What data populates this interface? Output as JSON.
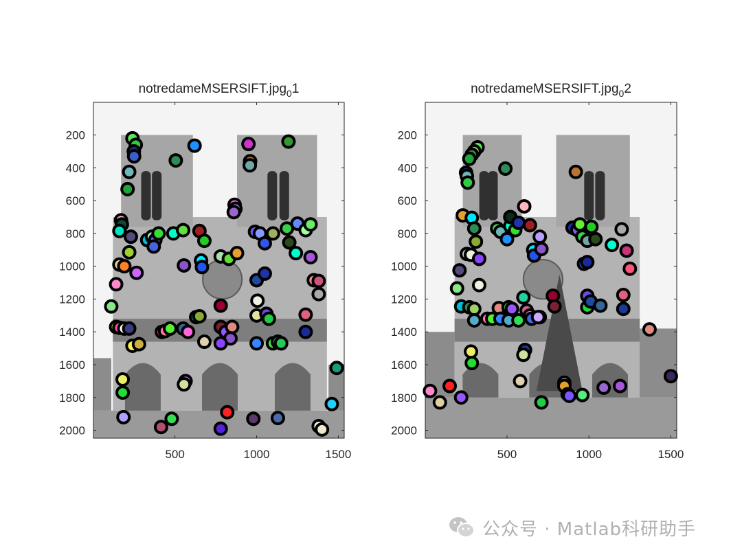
{
  "chart_data": [
    {
      "type": "scatter",
      "title_main": "notredameMSERSIFT.jpg",
      "title_sub": "0",
      "title_suffix": "1",
      "xlim": [
        1,
        1536
      ],
      "ylim": [
        1,
        2048
      ],
      "y_reversed": true,
      "x_ticks": [
        500,
        1000,
        1500
      ],
      "y_ticks": [
        200,
        400,
        600,
        800,
        1000,
        1200,
        1400,
        1600,
        1800,
        2000
      ],
      "background": "grayscale photo of Notre-Dame cathedral facade",
      "points": [
        {
          "x": 240,
          "y": 220,
          "color": "#5ee35e"
        },
        {
          "x": 260,
          "y": 260,
          "color": "#2ecc40"
        },
        {
          "x": 620,
          "y": 265,
          "color": "#1e90ff"
        },
        {
          "x": 950,
          "y": 255,
          "color": "#cc33cc"
        },
        {
          "x": 1195,
          "y": 240,
          "color": "#339933"
        },
        {
          "x": 248,
          "y": 300,
          "color": "#1f2f7f"
        },
        {
          "x": 250,
          "y": 330,
          "color": "#3a5fcd"
        },
        {
          "x": 505,
          "y": 355,
          "color": "#2e8b57"
        },
        {
          "x": 960,
          "y": 360,
          "color": "#b87333"
        },
        {
          "x": 958,
          "y": 385,
          "color": "#6fa8a8"
        },
        {
          "x": 220,
          "y": 425,
          "color": "#6fb6b6"
        },
        {
          "x": 210,
          "y": 530,
          "color": "#1fa33a"
        },
        {
          "x": 865,
          "y": 625,
          "color": "#ff66ff"
        },
        {
          "x": 870,
          "y": 650,
          "color": "#b5a0ff"
        },
        {
          "x": 860,
          "y": 670,
          "color": "#9966cc"
        },
        {
          "x": 170,
          "y": 720,
          "color": "#ffb6c1"
        },
        {
          "x": 175,
          "y": 745,
          "color": "#0a4b3a"
        },
        {
          "x": 160,
          "y": 785,
          "color": "#00e5c0"
        },
        {
          "x": 230,
          "y": 820,
          "color": "#554a7a"
        },
        {
          "x": 330,
          "y": 840,
          "color": "#00bcd4"
        },
        {
          "x": 360,
          "y": 820,
          "color": "#a8e6cf"
        },
        {
          "x": 380,
          "y": 840,
          "color": "#6666ff"
        },
        {
          "x": 400,
          "y": 800,
          "color": "#33dd33"
        },
        {
          "x": 490,
          "y": 800,
          "color": "#00ffc8"
        },
        {
          "x": 550,
          "y": 780,
          "color": "#66dd44"
        },
        {
          "x": 650,
          "y": 785,
          "color": "#a02020"
        },
        {
          "x": 680,
          "y": 845,
          "color": "#22cc22"
        },
        {
          "x": 370,
          "y": 880,
          "color": "#4466dd"
        },
        {
          "x": 220,
          "y": 915,
          "color": "#a0d030"
        },
        {
          "x": 555,
          "y": 995,
          "color": "#8a55cc"
        },
        {
          "x": 660,
          "y": 965,
          "color": "#00e5ff"
        },
        {
          "x": 665,
          "y": 1005,
          "color": "#2255ee"
        },
        {
          "x": 780,
          "y": 940,
          "color": "#a8e0a8"
        },
        {
          "x": 830,
          "y": 955,
          "color": "#66dd33"
        },
        {
          "x": 880,
          "y": 920,
          "color": "#e6a030"
        },
        {
          "x": 990,
          "y": 790,
          "color": "#7a5ae6"
        },
        {
          "x": 1020,
          "y": 800,
          "color": "#8899ff"
        },
        {
          "x": 1050,
          "y": 860,
          "color": "#3355ee"
        },
        {
          "x": 1100,
          "y": 800,
          "color": "#a0b060"
        },
        {
          "x": 1185,
          "y": 770,
          "color": "#3ad04a"
        },
        {
          "x": 1200,
          "y": 855,
          "color": "#2b4a1a"
        },
        {
          "x": 1250,
          "y": 740,
          "color": "#6688ff"
        },
        {
          "x": 1300,
          "y": 780,
          "color": "#a0ffa0"
        },
        {
          "x": 1330,
          "y": 745,
          "color": "#66ee66"
        },
        {
          "x": 1240,
          "y": 920,
          "color": "#00ffd0"
        },
        {
          "x": 1330,
          "y": 945,
          "color": "#a855dd"
        },
        {
          "x": 160,
          "y": 990,
          "color": "#dcd0a0"
        },
        {
          "x": 190,
          "y": 1000,
          "color": "#ff7f27"
        },
        {
          "x": 265,
          "y": 1040,
          "color": "#cc66ff"
        },
        {
          "x": 1000,
          "y": 1085,
          "color": "#1f4aa0"
        },
        {
          "x": 1050,
          "y": 1045,
          "color": "#2233aa"
        },
        {
          "x": 1350,
          "y": 1085,
          "color": "#ff9090"
        },
        {
          "x": 1380,
          "y": 1090,
          "color": "#cc5577"
        },
        {
          "x": 1380,
          "y": 1170,
          "color": "#aaaaaa"
        },
        {
          "x": 140,
          "y": 1110,
          "color": "#ff88cc"
        },
        {
          "x": 110,
          "y": 1245,
          "color": "#8ae68a"
        },
        {
          "x": 780,
          "y": 1240,
          "color": "#9a0030"
        },
        {
          "x": 1005,
          "y": 1210,
          "color": "#f0f0e0"
        },
        {
          "x": 1000,
          "y": 1300,
          "color": "#e0e0a0"
        },
        {
          "x": 1060,
          "y": 1290,
          "color": "#6a4ae0"
        },
        {
          "x": 1075,
          "y": 1320,
          "color": "#22cc44"
        },
        {
          "x": 1300,
          "y": 1295,
          "color": "#e06080"
        },
        {
          "x": 630,
          "y": 1310,
          "color": "#1fa89a"
        },
        {
          "x": 650,
          "y": 1305,
          "color": "#88aa33"
        },
        {
          "x": 140,
          "y": 1370,
          "color": "#aaee22"
        },
        {
          "x": 160,
          "y": 1375,
          "color": "#ff4fa0"
        },
        {
          "x": 190,
          "y": 1380,
          "color": "#ffffff"
        },
        {
          "x": 220,
          "y": 1380,
          "color": "#3b3b80"
        },
        {
          "x": 420,
          "y": 1400,
          "color": "#ff3344"
        },
        {
          "x": 440,
          "y": 1395,
          "color": "#ff77aa"
        },
        {
          "x": 470,
          "y": 1380,
          "color": "#55ee33"
        },
        {
          "x": 550,
          "y": 1380,
          "color": "#336699"
        },
        {
          "x": 580,
          "y": 1400,
          "color": "#ff66dd"
        },
        {
          "x": 780,
          "y": 1370,
          "color": "#7a2233"
        },
        {
          "x": 810,
          "y": 1400,
          "color": "#9955ff"
        },
        {
          "x": 850,
          "y": 1370,
          "color": "#e08a80"
        },
        {
          "x": 840,
          "y": 1440,
          "color": "#8855cc"
        },
        {
          "x": 1300,
          "y": 1400,
          "color": "#1a2a99"
        },
        {
          "x": 680,
          "y": 1460,
          "color": "#e0d0b0"
        },
        {
          "x": 780,
          "y": 1470,
          "color": "#8a44ff"
        },
        {
          "x": 1000,
          "y": 1470,
          "color": "#3388ff"
        },
        {
          "x": 1100,
          "y": 1470,
          "color": "#44dd44"
        },
        {
          "x": 1130,
          "y": 1460,
          "color": "#1a9a7a"
        },
        {
          "x": 1150,
          "y": 1470,
          "color": "#22cc55"
        },
        {
          "x": 240,
          "y": 1485,
          "color": "#ffee55"
        },
        {
          "x": 280,
          "y": 1475,
          "color": "#ccb040"
        },
        {
          "x": 1490,
          "y": 1620,
          "color": "#1a9a7a"
        },
        {
          "x": 180,
          "y": 1690,
          "color": "#eeee66"
        },
        {
          "x": 565,
          "y": 1700,
          "color": "#cc66ff"
        },
        {
          "x": 555,
          "y": 1720,
          "color": "#d0e0a0"
        },
        {
          "x": 180,
          "y": 1770,
          "color": "#22dd33"
        },
        {
          "x": 1460,
          "y": 1840,
          "color": "#1fd0ff"
        },
        {
          "x": 185,
          "y": 1920,
          "color": "#b0a0ff"
        },
        {
          "x": 480,
          "y": 1930,
          "color": "#33dd55"
        },
        {
          "x": 820,
          "y": 1890,
          "color": "#ff2222"
        },
        {
          "x": 1130,
          "y": 1925,
          "color": "#4a6aaa"
        },
        {
          "x": 980,
          "y": 1930,
          "color": "#5a3a6a"
        },
        {
          "x": 415,
          "y": 1980,
          "color": "#b05070"
        },
        {
          "x": 780,
          "y": 1990,
          "color": "#5522dd"
        },
        {
          "x": 1380,
          "y": 1975,
          "color": "#ffffe0"
        },
        {
          "x": 1400,
          "y": 1995,
          "color": "#f0e8d0"
        }
      ]
    },
    {
      "type": "scatter",
      "title_main": "notredameMSERSIFT.jpg",
      "title_sub": "0",
      "title_suffix": "2",
      "xlim": [
        1,
        1536
      ],
      "ylim": [
        1,
        2048
      ],
      "y_reversed": true,
      "x_ticks": [
        500,
        1000,
        1500
      ],
      "y_ticks": [
        200,
        400,
        600,
        800,
        1000,
        1200,
        1400,
        1600,
        1800,
        2000
      ],
      "background": "grayscale photo of Notre-Dame cathedral facade with a tree",
      "points": [
        {
          "x": 320,
          "y": 275,
          "color": "#55ee55"
        },
        {
          "x": 300,
          "y": 300,
          "color": "#a0d060"
        },
        {
          "x": 285,
          "y": 320,
          "color": "#2e8b57"
        },
        {
          "x": 270,
          "y": 345,
          "color": "#1fa33a"
        },
        {
          "x": 250,
          "y": 430,
          "color": "#1f2f7f"
        },
        {
          "x": 255,
          "y": 450,
          "color": "#6fb6b6"
        },
        {
          "x": 260,
          "y": 490,
          "color": "#2ecc40"
        },
        {
          "x": 490,
          "y": 405,
          "color": "#2e8b57"
        },
        {
          "x": 920,
          "y": 425,
          "color": "#b87333"
        },
        {
          "x": 230,
          "y": 690,
          "color": "#e6a030"
        },
        {
          "x": 285,
          "y": 705,
          "color": "#00e5ff"
        },
        {
          "x": 300,
          "y": 770,
          "color": "#2e8b57"
        },
        {
          "x": 310,
          "y": 850,
          "color": "#88aa33"
        },
        {
          "x": 255,
          "y": 925,
          "color": "#a8e0a8"
        },
        {
          "x": 280,
          "y": 930,
          "color": "#f0f0e0"
        },
        {
          "x": 330,
          "y": 955,
          "color": "#8a44ff"
        },
        {
          "x": 440,
          "y": 770,
          "color": "#44dd44"
        },
        {
          "x": 460,
          "y": 790,
          "color": "#6fb6b6"
        },
        {
          "x": 520,
          "y": 755,
          "color": "#00ffc8"
        },
        {
          "x": 550,
          "y": 780,
          "color": "#33dd33"
        },
        {
          "x": 500,
          "y": 835,
          "color": "#1e90ff"
        },
        {
          "x": 605,
          "y": 635,
          "color": "#ffb6c1"
        },
        {
          "x": 520,
          "y": 700,
          "color": "#0a2a1a"
        },
        {
          "x": 570,
          "y": 735,
          "color": "#2233aa"
        },
        {
          "x": 640,
          "y": 750,
          "color": "#a02020"
        },
        {
          "x": 660,
          "y": 900,
          "color": "#00e5ff"
        },
        {
          "x": 665,
          "y": 935,
          "color": "#2255ee"
        },
        {
          "x": 700,
          "y": 820,
          "color": "#b5a0ff"
        },
        {
          "x": 710,
          "y": 895,
          "color": "#8a55cc"
        },
        {
          "x": 900,
          "y": 765,
          "color": "#1a2a99"
        },
        {
          "x": 930,
          "y": 780,
          "color": "#7a5ae6"
        },
        {
          "x": 945,
          "y": 745,
          "color": "#66ee33"
        },
        {
          "x": 960,
          "y": 820,
          "color": "#3ad04a"
        },
        {
          "x": 990,
          "y": 845,
          "color": "#6fa8a8"
        },
        {
          "x": 1015,
          "y": 760,
          "color": "#22cc22"
        },
        {
          "x": 1040,
          "y": 835,
          "color": "#2b4a1a"
        },
        {
          "x": 1140,
          "y": 870,
          "color": "#00ffd0"
        },
        {
          "x": 1200,
          "y": 775,
          "color": "#aaaaaa"
        },
        {
          "x": 1230,
          "y": 905,
          "color": "#cc3377"
        },
        {
          "x": 1250,
          "y": 1015,
          "color": "#ff5577"
        },
        {
          "x": 210,
          "y": 1025,
          "color": "#554a7a"
        },
        {
          "x": 195,
          "y": 1135,
          "color": "#8ae68a"
        },
        {
          "x": 330,
          "y": 1115,
          "color": "#f0f0e0"
        },
        {
          "x": 970,
          "y": 985,
          "color": "#3355ee"
        },
        {
          "x": 990,
          "y": 975,
          "color": "#1a2a99"
        },
        {
          "x": 220,
          "y": 1245,
          "color": "#00bcd4"
        },
        {
          "x": 270,
          "y": 1250,
          "color": "#2e8b57"
        },
        {
          "x": 300,
          "y": 1260,
          "color": "#a0d060"
        },
        {
          "x": 450,
          "y": 1255,
          "color": "#e08a80"
        },
        {
          "x": 510,
          "y": 1250,
          "color": "#22cc22"
        },
        {
          "x": 530,
          "y": 1260,
          "color": "#9955ff"
        },
        {
          "x": 600,
          "y": 1190,
          "color": "#1fd0a0"
        },
        {
          "x": 620,
          "y": 1270,
          "color": "#cc6688"
        },
        {
          "x": 640,
          "y": 1300,
          "color": "#ff66dd"
        },
        {
          "x": 700,
          "y": 1310,
          "color": "#e0e0a0"
        },
        {
          "x": 780,
          "y": 1180,
          "color": "#9a0030"
        },
        {
          "x": 790,
          "y": 1245,
          "color": "#7a2233"
        },
        {
          "x": 990,
          "y": 1180,
          "color": "#6a4ae0"
        },
        {
          "x": 990,
          "y": 1250,
          "color": "#22dd33"
        },
        {
          "x": 1010,
          "y": 1215,
          "color": "#1f4aa0"
        },
        {
          "x": 1070,
          "y": 1240,
          "color": "#336699"
        },
        {
          "x": 1210,
          "y": 1175,
          "color": "#e06080"
        },
        {
          "x": 1210,
          "y": 1260,
          "color": "#1a3a99"
        },
        {
          "x": 300,
          "y": 1330,
          "color": "#55aacc"
        },
        {
          "x": 380,
          "y": 1320,
          "color": "#ff77aa"
        },
        {
          "x": 410,
          "y": 1320,
          "color": "#55ee33"
        },
        {
          "x": 460,
          "y": 1320,
          "color": "#3388ff"
        },
        {
          "x": 510,
          "y": 1330,
          "color": "#55aacc"
        },
        {
          "x": 570,
          "y": 1330,
          "color": "#33dd55"
        },
        {
          "x": 650,
          "y": 1320,
          "color": "#4466dd"
        },
        {
          "x": 690,
          "y": 1310,
          "color": "#ccaaff"
        },
        {
          "x": 1370,
          "y": 1385,
          "color": "#e08a80"
        },
        {
          "x": 280,
          "y": 1520,
          "color": "#eeee66"
        },
        {
          "x": 285,
          "y": 1590,
          "color": "#22dd33"
        },
        {
          "x": 610,
          "y": 1510,
          "color": "#1a3a99"
        },
        {
          "x": 600,
          "y": 1540,
          "color": "#d0e0a0"
        },
        {
          "x": 580,
          "y": 1700,
          "color": "#e0d0b0"
        },
        {
          "x": 30,
          "y": 1760,
          "color": "#ff88cc"
        },
        {
          "x": 150,
          "y": 1730,
          "color": "#ff2222"
        },
        {
          "x": 90,
          "y": 1830,
          "color": "#e0d0a0"
        },
        {
          "x": 220,
          "y": 1800,
          "color": "#9955ff"
        },
        {
          "x": 710,
          "y": 1830,
          "color": "#22cc44"
        },
        {
          "x": 850,
          "y": 1710,
          "color": "#ffffff"
        },
        {
          "x": 850,
          "y": 1730,
          "color": "#e6a030"
        },
        {
          "x": 870,
          "y": 1780,
          "color": "#1fa89a"
        },
        {
          "x": 880,
          "y": 1790,
          "color": "#7a55ff"
        },
        {
          "x": 960,
          "y": 1785,
          "color": "#55ee77"
        },
        {
          "x": 1090,
          "y": 1740,
          "color": "#9966cc"
        },
        {
          "x": 1190,
          "y": 1730,
          "color": "#a855dd"
        },
        {
          "x": 1500,
          "y": 1670,
          "color": "#3a2a5a"
        }
      ]
    }
  ],
  "watermark": {
    "icon": "wechat-icon",
    "text": "公众号 · Matlab科研助手"
  }
}
